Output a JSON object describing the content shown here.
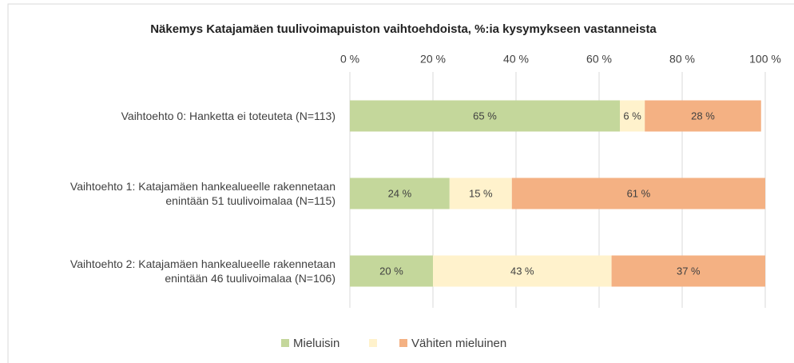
{
  "chart_data": {
    "type": "stacked-barh",
    "title": "Näkemys Katajamäen tuulivoimapuiston vaihtoehdoista, %:ia kysymykseen vastanneista",
    "categories": [
      "Vaihtoehto 0: Hanketta ei toteuteta (N=113)",
      "Vaihtoehto 1: Katajamäen hankealueelle rakennetaan\nenintään 51 tuulivoimalaa (N=115)",
      "Vaihtoehto 2: Katajamäen hankealueelle rakennetaan\nenintään 46 tuulivoimalaa (N=106)"
    ],
    "series": [
      {
        "name": "Mieluisin",
        "color": "#c4d79b",
        "values": [
          65,
          24,
          20
        ],
        "value_labels": [
          "65 %",
          "24 %",
          "20 %"
        ]
      },
      {
        "name": null,
        "color": "#fff2cc",
        "values": [
          6,
          15,
          43
        ],
        "value_labels": [
          "6 %",
          "15 %",
          "43 %"
        ]
      },
      {
        "name": "Vähiten mieluinen",
        "color": "#f4b183",
        "values": [
          28,
          61,
          37
        ],
        "value_labels": [
          "28 %",
          "61 %",
          "37 %"
        ]
      }
    ],
    "xlim": [
      0,
      100
    ],
    "xticks": [
      {
        "value": 0,
        "label": "0 %"
      },
      {
        "value": 20,
        "label": "20 %"
      },
      {
        "value": 40,
        "label": "40 %"
      },
      {
        "value": 60,
        "label": "60 %"
      },
      {
        "value": 80,
        "label": "80 %"
      },
      {
        "value": 100,
        "label": "100 %"
      }
    ],
    "grid": true,
    "legend": "bottom"
  }
}
